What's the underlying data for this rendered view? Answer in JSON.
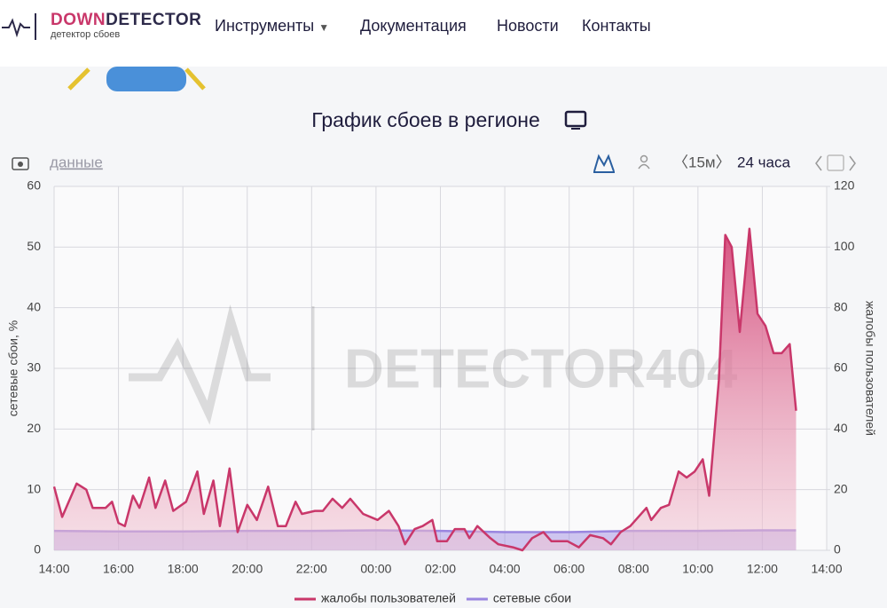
{
  "header": {
    "logo": {
      "down": "DOWN",
      "detector": "DETECTOR",
      "subtitle": "детектор сбоев"
    },
    "nav": [
      "Инструменты",
      "Документация",
      "Новости",
      "Контакты"
    ]
  },
  "toolbar": {
    "data_link": "данные",
    "interval": "〈15м〉",
    "range": "24 часа"
  },
  "watermark": "DETECTOR404",
  "chart_data": {
    "type": "line",
    "title": "График сбоев в регионе",
    "y_label": "сетевые сбои, %",
    "y2_label": "жалобы пользователей",
    "xlim": [
      0,
      24
    ],
    "xticks": [
      {
        "value": 0,
        "label": "14:00"
      },
      {
        "value": 2,
        "label": "16:00"
      },
      {
        "value": 4,
        "label": "18:00"
      },
      {
        "value": 6,
        "label": "20:00"
      },
      {
        "value": 8,
        "label": "22:00"
      },
      {
        "value": 10,
        "label": "00:00"
      },
      {
        "value": 12,
        "label": "02:00"
      },
      {
        "value": 14,
        "label": "04:00"
      },
      {
        "value": 16,
        "label": "06:00"
      },
      {
        "value": 18,
        "label": "08:00"
      },
      {
        "value": 20,
        "label": "10:00"
      },
      {
        "value": 22,
        "label": "12:00"
      },
      {
        "value": 24,
        "label": "14:00"
      }
    ],
    "ylim": [
      0,
      60
    ],
    "yticks": [
      0,
      10,
      20,
      30,
      40,
      50,
      60
    ],
    "y2lim": [
      0,
      120
    ],
    "y2ticks": [
      0,
      20,
      40,
      60,
      80,
      100,
      120
    ],
    "grid": true,
    "legend": "bottom",
    "series": [
      {
        "name": "жалобы пользователей",
        "color": "#c9376a",
        "axis": "y2",
        "x": [
          0,
          0.25,
          0.7,
          1.0,
          1.2,
          1.6,
          1.8,
          2.0,
          2.2,
          2.45,
          2.65,
          2.95,
          3.15,
          3.45,
          3.7,
          4.1,
          4.45,
          4.65,
          4.95,
          5.15,
          5.45,
          5.7,
          6.0,
          6.3,
          6.65,
          6.95,
          7.2,
          7.5,
          7.7,
          8.1,
          8.35,
          8.65,
          8.95,
          9.2,
          9.6,
          10.05,
          10.4,
          10.7,
          10.9,
          11.2,
          11.45,
          11.75,
          11.9,
          12.2,
          12.45,
          12.75,
          12.9,
          13.15,
          13.55,
          13.8,
          14.25,
          14.55,
          14.85,
          15.2,
          15.45,
          15.95,
          16.3,
          16.65,
          17.05,
          17.3,
          17.6,
          17.9,
          18.15,
          18.4,
          18.55,
          18.85,
          19.1,
          19.4,
          19.65,
          19.9,
          20.15,
          20.35,
          20.65,
          20.85,
          21.05,
          21.3,
          21.6,
          21.85,
          22.1,
          22.35,
          22.6,
          22.85,
          23.05
        ],
        "values": [
          21,
          11,
          22,
          20,
          14,
          14,
          16,
          9,
          8,
          18,
          14,
          24,
          14,
          23,
          13,
          16,
          26,
          12,
          23,
          8,
          27,
          6,
          15,
          10,
          21,
          8,
          8,
          16,
          12,
          13,
          13,
          17,
          14,
          17,
          12,
          10,
          13,
          8,
          2,
          7,
          8,
          10,
          3,
          3,
          7,
          7,
          4,
          8,
          4,
          2,
          1,
          0,
          4,
          6,
          3,
          3,
          1,
          5,
          4,
          2,
          6,
          8,
          11,
          14,
          10,
          14,
          15,
          26,
          24,
          26,
          30,
          18,
          56,
          104,
          100,
          72,
          106,
          78,
          74,
          65,
          65,
          68,
          46
        ]
      },
      {
        "name": "сетевые сбои",
        "color": "#9a86e0",
        "x": [
          0,
          2,
          4,
          6,
          8,
          10,
          12,
          14,
          16,
          18,
          20,
          22,
          23.05
        ],
        "values": [
          3.2,
          3.1,
          3.1,
          3.2,
          3.2,
          3.3,
          3.2,
          3.0,
          3.0,
          3.2,
          3.2,
          3.3,
          3.3
        ]
      }
    ]
  }
}
